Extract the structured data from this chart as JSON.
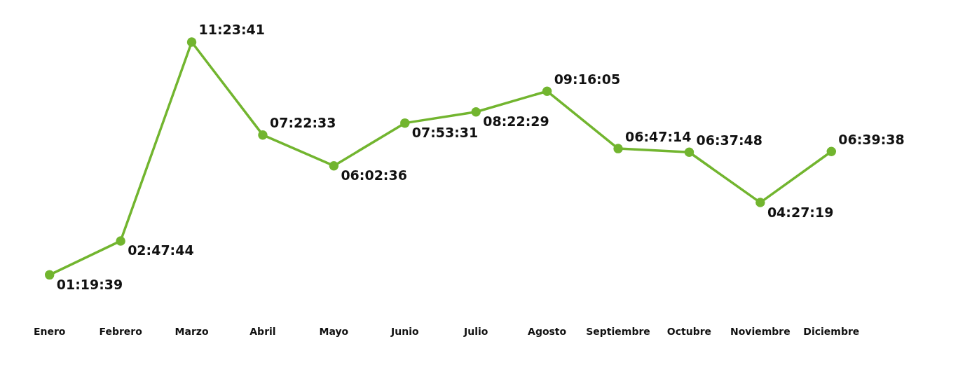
{
  "chart_data": {
    "type": "line",
    "categories": [
      "Enero",
      "Febrero",
      "Marzo",
      "Abril",
      "Mayo",
      "Junio",
      "Julio",
      "Agosto",
      "Septiembre",
      "Octubre",
      "Noviembre",
      "Diciembre"
    ],
    "series": [
      {
        "color": "#72b52f",
        "values": [
          1.3275,
          2.7956,
          11.3947,
          7.3758,
          6.0433,
          7.8919,
          8.3747,
          9.2681,
          6.7872,
          6.63,
          4.4553,
          6.6606
        ],
        "value_labels": [
          "01:19:39",
          "02:47:44",
          "11:23:41",
          "07:22:33",
          "06:02:36",
          "07:53:31",
          "08:22:29",
          "09:16:05",
          "06:47:14",
          "06:37:48",
          "04:27:19",
          "06:39:38"
        ]
      }
    ],
    "marker": "circle",
    "grid": false,
    "legend": false,
    "tick_labels": "x"
  }
}
